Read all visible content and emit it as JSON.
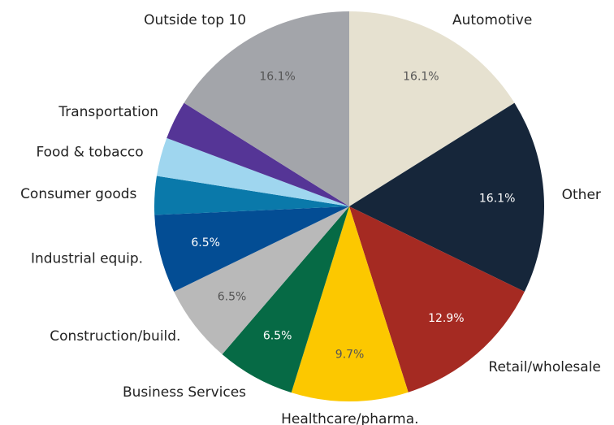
{
  "chart_data": {
    "type": "pie",
    "categories": [
      "Automotive",
      "Other",
      "Retail/wholesale",
      "Healthcare/pharma.",
      "Business Services",
      "Construction/build.",
      "Industrial equip.",
      "Consumer goods",
      "Food & tobacco",
      "Transportation",
      "Outside top 10"
    ],
    "values": [
      16.1,
      16.1,
      12.9,
      9.7,
      6.5,
      6.5,
      6.5,
      3.2,
      3.2,
      3.2,
      16.1
    ],
    "value_labels": [
      "16.1%",
      "16.1%",
      "12.9%",
      "9.7%",
      "6.5%",
      "6.5%",
      "6.5%",
      null,
      null,
      null,
      "16.1%"
    ],
    "colors": [
      "#e6e1d0",
      "#16263a",
      "#a52a22",
      "#fcc800",
      "#066a45",
      "#b9b9b9",
      "#034d94",
      "#0a79aa",
      "#9fd6ef",
      "#553596",
      "#a3a5aa"
    ]
  }
}
